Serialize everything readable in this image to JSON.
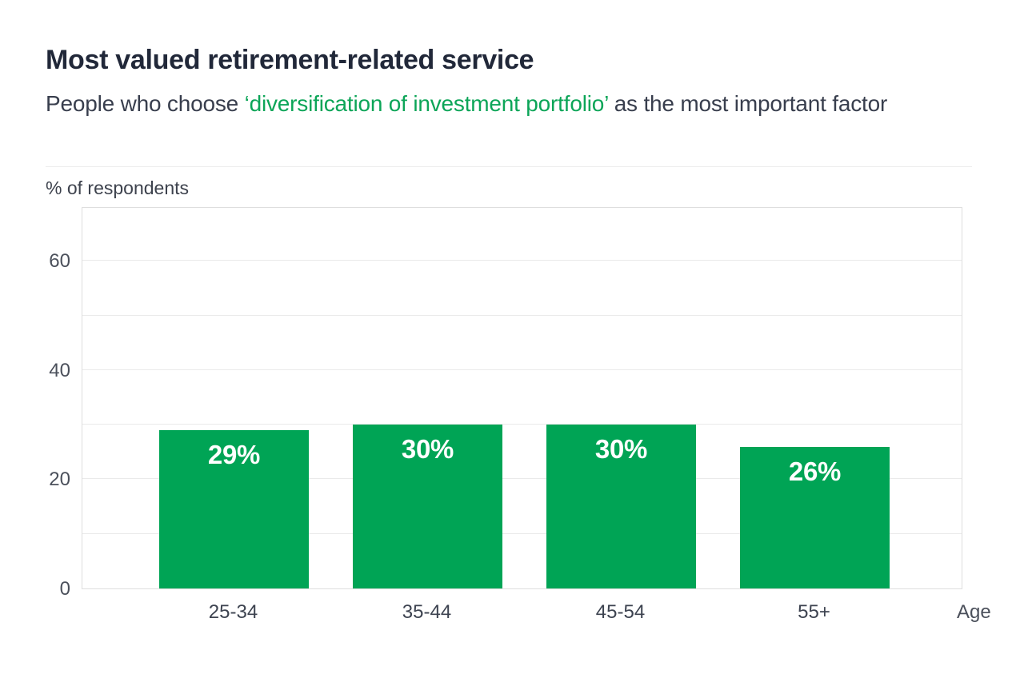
{
  "header": {
    "title": "Most valued retirement-related service",
    "subtitle_prefix": "People who choose ",
    "subtitle_highlight": "‘diversification of investment portfolio’",
    "subtitle_suffix": " as the most important factor"
  },
  "colors": {
    "title_text": "#212839",
    "subtitle_text": "#383e4d",
    "highlight_green": "#0ca558",
    "bar_green": "#00a455",
    "bar_label_text": "#ffffff",
    "axis_text": "#4b505b",
    "gridline": "#eaeaea",
    "plot_border": "#dedede"
  },
  "chart_data": {
    "type": "bar",
    "title": "Most valued retirement-related service",
    "subtitle": "People who choose ‘diversification of investment portfolio’ as the most important factor",
    "ylabel": "% of respondents",
    "xlabel": "Age",
    "categories": [
      "25-34",
      "35-44",
      "45-54",
      "55+"
    ],
    "values": [
      29,
      30,
      30,
      26
    ],
    "value_labels": [
      "29%",
      "30%",
      "30%",
      "26%"
    ],
    "ylim": [
      0,
      70
    ],
    "gridline_step": 10,
    "yticks_labeled": [
      0,
      20,
      40,
      60
    ],
    "ytick_labels": [
      "0",
      "20",
      "40",
      "60"
    ],
    "grid": "horizontal",
    "legend": "none",
    "bar_color": "#00a455"
  }
}
